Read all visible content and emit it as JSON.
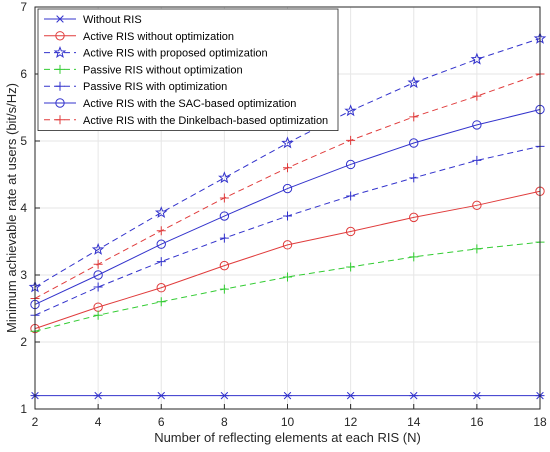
{
  "chart_data": {
    "type": "line",
    "xlabel": "Number of reflecting elements at each RIS (N)",
    "ylabel": "Minimum achievable rate at users (bit/s/Hz)",
    "x": [
      2,
      4,
      6,
      8,
      10,
      12,
      14,
      16,
      18
    ],
    "xlim": [
      2,
      18
    ],
    "ylim": [
      1,
      7
    ],
    "xticks": [
      "2",
      "4",
      "6",
      "8",
      "10",
      "12",
      "14",
      "16",
      "18"
    ],
    "yticks": [
      "1",
      "2",
      "3",
      "4",
      "5",
      "6",
      "7"
    ],
    "grid": true,
    "legend_position": "top-left",
    "series": [
      {
        "name": "Without RIS",
        "color": "#3333cc",
        "dash": "solid",
        "marker": "asterisk",
        "values": [
          1.2,
          1.2,
          1.2,
          1.2,
          1.2,
          1.2,
          1.2,
          1.2,
          1.2
        ]
      },
      {
        "name": "Active RIS without optimization",
        "color": "#e03c3c",
        "dash": "solid",
        "marker": "circle",
        "values": [
          2.2,
          2.52,
          2.81,
          3.14,
          3.45,
          3.65,
          3.86,
          4.04,
          4.25
        ]
      },
      {
        "name": "Active RIS with proposed optimization",
        "color": "#3333cc",
        "dash": "dashed",
        "marker": "star",
        "values": [
          2.82,
          3.38,
          3.93,
          4.45,
          4.97,
          5.45,
          5.87,
          6.22,
          6.53
        ]
      },
      {
        "name": "Passive RIS without optimization",
        "color": "#33cc33",
        "dash": "dashed",
        "marker": "plus",
        "values": [
          2.16,
          2.4,
          2.6,
          2.79,
          2.97,
          3.12,
          3.27,
          3.39,
          3.49
        ]
      },
      {
        "name": "Passive RIS with optimization",
        "color": "#3333cc",
        "dash": "dashed",
        "marker": "plus",
        "values": [
          2.4,
          2.82,
          3.2,
          3.55,
          3.88,
          4.18,
          4.45,
          4.71,
          4.92
        ]
      },
      {
        "name": "Active RIS with the SAC-based optimization",
        "color": "#3333cc",
        "dash": "solid",
        "marker": "circle",
        "values": [
          2.56,
          3.0,
          3.46,
          3.88,
          4.29,
          4.65,
          4.97,
          5.24,
          5.47
        ]
      },
      {
        "name": "Active RIS with the Dinkelbach-based optimization",
        "color": "#e03c3c",
        "dash": "dashed",
        "marker": "plus",
        "values": [
          2.65,
          3.16,
          3.66,
          4.15,
          4.6,
          5.01,
          5.36,
          5.67,
          6.0
        ]
      }
    ]
  }
}
